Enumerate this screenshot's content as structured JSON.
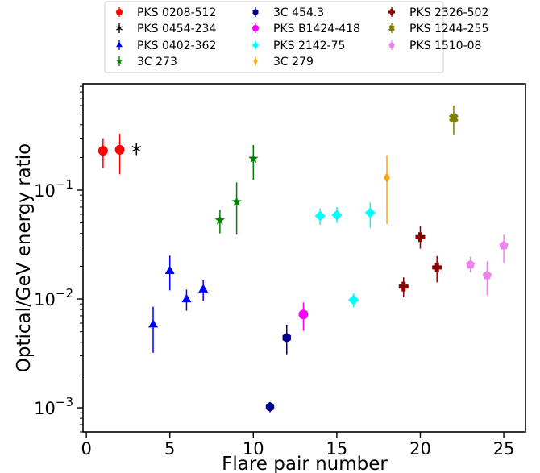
{
  "chart_data": {
    "type": "scatter",
    "title": "",
    "xlabel": "Flare pair number",
    "ylabel": "Optical/GeV energy ratio",
    "xlim": [
      -0.2,
      26.3
    ],
    "ylim": [
      0.0006,
      0.95
    ],
    "yscale": "log",
    "grid": false,
    "legend_placement": "top-center",
    "x_ticks": [
      {
        "value": 0,
        "label": "0"
      },
      {
        "value": 5,
        "label": "5"
      },
      {
        "value": 10,
        "label": "10"
      },
      {
        "value": 15,
        "label": "15"
      },
      {
        "value": 20,
        "label": "20"
      },
      {
        "value": 25,
        "label": "25"
      }
    ],
    "y_ticks": [
      {
        "value": 0.001,
        "base": "10",
        "exp": "−3"
      },
      {
        "value": 0.01,
        "base": "10",
        "exp": "−2"
      },
      {
        "value": 0.1,
        "base": "10",
        "exp": "−1"
      }
    ],
    "series": [
      {
        "name": "PKS 0208-512",
        "color": "#ff0000",
        "marker": "circle",
        "points": [
          {
            "x": 1,
            "y": 0.23,
            "lo": 0.16,
            "hi": 0.3
          },
          {
            "x": 2,
            "y": 0.235,
            "lo": 0.14,
            "hi": 0.33
          }
        ]
      },
      {
        "name": "PKS 0454-234",
        "color": "#000000",
        "marker": "star-x",
        "points": [
          {
            "x": 3,
            "y": 0.24,
            "lo": 0.21,
            "hi": 0.27
          }
        ]
      },
      {
        "name": "PKS 0402-362",
        "color": "#0000ff",
        "marker": "triangle",
        "points": [
          {
            "x": 4,
            "y": 0.0058,
            "lo": 0.0032,
            "hi": 0.0085
          },
          {
            "x": 5,
            "y": 0.018,
            "lo": 0.012,
            "hi": 0.025
          },
          {
            "x": 6,
            "y": 0.0099,
            "lo": 0.0078,
            "hi": 0.0122
          },
          {
            "x": 7,
            "y": 0.0122,
            "lo": 0.0096,
            "hi": 0.0148
          }
        ]
      },
      {
        "name": "3C 273",
        "color": "#008000",
        "marker": "star",
        "points": [
          {
            "x": 8,
            "y": 0.053,
            "lo": 0.04,
            "hi": 0.066
          },
          {
            "x": 9,
            "y": 0.078,
            "lo": 0.039,
            "hi": 0.118
          },
          {
            "x": 10,
            "y": 0.195,
            "lo": 0.125,
            "hi": 0.26
          }
        ]
      },
      {
        "name": "3C 454.3",
        "color": "#00008b",
        "marker": "hexagon",
        "points": [
          {
            "x": 11,
            "y": 0.00102,
            "lo": 0.00091,
            "hi": 0.00113
          },
          {
            "x": 12,
            "y": 0.0044,
            "lo": 0.0031,
            "hi": 0.0058
          }
        ]
      },
      {
        "name": "PKS B1424-418",
        "color": "#ff00ff",
        "marker": "circle",
        "points": [
          {
            "x": 13,
            "y": 0.0072,
            "lo": 0.0051,
            "hi": 0.0093
          }
        ]
      },
      {
        "name": "PKS 2142-75",
        "color": "#00ffff",
        "marker": "diamond",
        "points": [
          {
            "x": 14,
            "y": 0.058,
            "lo": 0.048,
            "hi": 0.068
          },
          {
            "x": 15,
            "y": 0.059,
            "lo": 0.05,
            "hi": 0.07
          },
          {
            "x": 16,
            "y": 0.0098,
            "lo": 0.0084,
            "hi": 0.0113
          },
          {
            "x": 17,
            "y": 0.062,
            "lo": 0.045,
            "hi": 0.077
          }
        ]
      },
      {
        "name": "3C 279",
        "color": "#ffa500",
        "marker": "diamond-thin",
        "points": [
          {
            "x": 18,
            "y": 0.13,
            "lo": 0.049,
            "hi": 0.21
          }
        ]
      },
      {
        "name": "PKS 2326-502",
        "color": "#8b0000",
        "marker": "plus",
        "points": [
          {
            "x": 19,
            "y": 0.013,
            "lo": 0.0104,
            "hi": 0.0158
          },
          {
            "x": 20,
            "y": 0.037,
            "lo": 0.029,
            "hi": 0.047
          },
          {
            "x": 21,
            "y": 0.0195,
            "lo": 0.0142,
            "hi": 0.0248
          }
        ]
      },
      {
        "name": "PKS 1244-255",
        "color": "#808000",
        "marker": "x-filled",
        "points": [
          {
            "x": 22,
            "y": 0.46,
            "lo": 0.32,
            "hi": 0.6
          }
        ]
      },
      {
        "name": "PKS 1510-08",
        "color": "#ee82ee",
        "marker": "pentagon",
        "points": [
          {
            "x": 23,
            "y": 0.0207,
            "lo": 0.0175,
            "hi": 0.0245
          },
          {
            "x": 24,
            "y": 0.0165,
            "lo": 0.0108,
            "hi": 0.0222
          },
          {
            "x": 25,
            "y": 0.031,
            "lo": 0.0215,
            "hi": 0.039
          }
        ]
      }
    ]
  }
}
